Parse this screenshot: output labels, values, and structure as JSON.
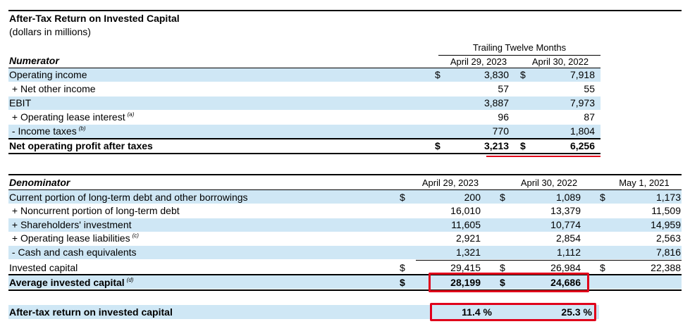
{
  "title": "After-Tax Return on Invested Capital",
  "subtitle": "(dollars in millions)",
  "numerator": {
    "section_label": "Numerator",
    "period_header": "Trailing Twelve Months",
    "col1_header": "April 29, 2023",
    "col2_header": "April 30, 2022",
    "rows": [
      {
        "label": "Operating income",
        "sup": "",
        "sym1": "$",
        "v1": "3,830",
        "sym2": "$",
        "v2": "7,918"
      },
      {
        "label": " + Net other income",
        "sup": "",
        "sym1": "",
        "v1": "57",
        "sym2": "",
        "v2": "55"
      },
      {
        "label": "EBIT",
        "sup": "",
        "sym1": "",
        "v1": "3,887",
        "sym2": "",
        "v2": "7,973"
      },
      {
        "label": " + Operating lease interest",
        "sup": "(a)",
        "sym1": "",
        "v1": "96",
        "sym2": "",
        "v2": "87"
      },
      {
        "label": " - Income taxes",
        "sup": "(b)",
        "sym1": "",
        "v1": "770",
        "sym2": "",
        "v2": "1,804"
      }
    ],
    "total": {
      "label": "Net operating profit after taxes",
      "sym1": "$",
      "v1": "3,213",
      "sym2": "$",
      "v2": "6,256"
    }
  },
  "denominator": {
    "section_label": "Denominator",
    "col1_header": "April 29, 2023",
    "col2_header": "April 30, 2022",
    "col3_header": "May 1, 2021",
    "rows": [
      {
        "label": "Current portion of long-term debt and other borrowings",
        "sup": "",
        "sym": "$",
        "v1": "200",
        "v2": "1,089",
        "v3": "1,173"
      },
      {
        "label": " + Noncurrent portion of long-term debt",
        "sup": "",
        "sym": "",
        "v1": "16,010",
        "v2": "13,379",
        "v3": "11,509"
      },
      {
        "label": " + Shareholders' investment",
        "sup": "",
        "sym": "",
        "v1": "11,605",
        "v2": "10,774",
        "v3": "14,959"
      },
      {
        "label": " + Operating lease liabilities",
        "sup": "(c)",
        "sym": "",
        "v1": "2,921",
        "v2": "2,854",
        "v3": "2,563"
      },
      {
        "label": " - Cash and cash equivalents",
        "sup": "",
        "sym": "",
        "v1": "1,321",
        "v2": "1,112",
        "v3": "7,816"
      },
      {
        "label": "Invested capital",
        "sup": "",
        "sym": "$",
        "v1": "29,415",
        "v2": "26,984",
        "v3": "22,388"
      }
    ],
    "average": {
      "label": "Average invested capital",
      "sup": "(d)",
      "sym1": "$",
      "v1": "28,199",
      "sym2": "$",
      "v2": "24,686"
    }
  },
  "result": {
    "label": "After-tax return on invested capital",
    "v1": "11.4 %",
    "v2": "25.3 %"
  }
}
